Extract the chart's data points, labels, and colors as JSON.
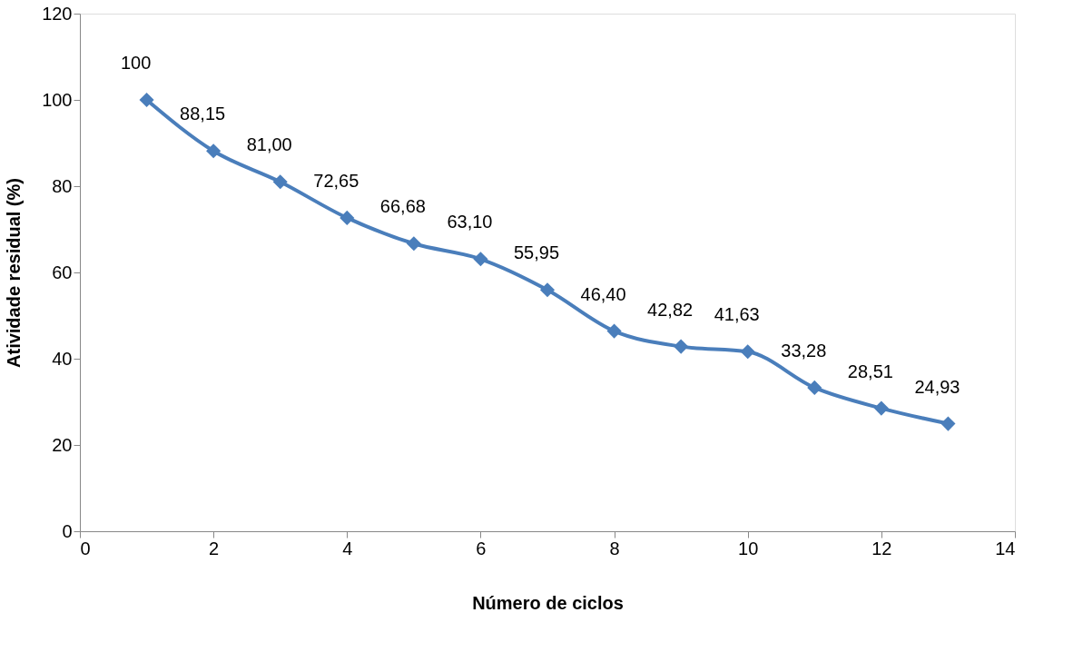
{
  "chart_data": {
    "type": "line",
    "xlabel": "Número de ciclos",
    "ylabel": "Atividade residual (%)",
    "x": [
      1,
      2,
      3,
      4,
      5,
      6,
      7,
      8,
      9,
      10,
      11,
      12,
      13
    ],
    "series": [
      {
        "color": "#4a7ebb",
        "values": [
          100,
          88.15,
          81.0,
          72.65,
          66.68,
          63.1,
          55.95,
          46.4,
          42.82,
          41.63,
          33.28,
          28.51,
          24.93
        ],
        "value_labels": [
          "100",
          "88,15",
          "81,00",
          "72,65",
          "66,68",
          "63,10",
          "55,95",
          "46,40",
          "42,82",
          "41,63",
          "33,28",
          "28,51",
          "24,93"
        ]
      }
    ],
    "xlim": [
      0,
      14
    ],
    "xticks": [
      0,
      2,
      4,
      6,
      8,
      10,
      12,
      14
    ],
    "ylim": [
      0,
      120
    ],
    "yticks": [
      0,
      20,
      40,
      60,
      80,
      100,
      120
    ],
    "grid": false,
    "marker": "diamond",
    "line_style": "solid"
  }
}
